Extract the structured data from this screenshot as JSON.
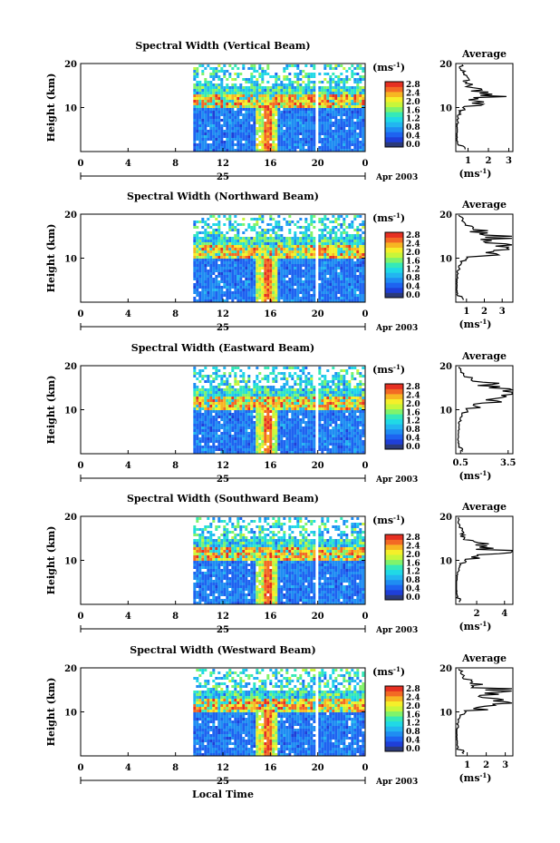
{
  "colors": {
    "scale": [
      "#2b3a7a",
      "#1f3fd8",
      "#1e63f0",
      "#1f8df2",
      "#22b6f0",
      "#20d9e6",
      "#35e9b8",
      "#7ff36b",
      "#c8f63a",
      "#f5ef2a",
      "#f7b622",
      "#f36a24",
      "#e63022"
    ]
  },
  "chart_data": [
    {
      "type": "heatmap",
      "title": "Spectral Width (Vertical Beam)",
      "ylabel": "Height (km)",
      "x_ticks": [
        "0",
        "4",
        "8",
        "12",
        "16",
        "20",
        "0"
      ],
      "y_ticks": [
        "20",
        "10"
      ],
      "date_label": "25",
      "month_year": "Apr 2003",
      "unit_label": "(ms",
      "unit_exp": "-1",
      "unit_close": ")",
      "colorbar_ticks": [
        "2.8",
        "2.4",
        "2.0",
        "1.6",
        "1.2",
        "0.8",
        "0.4",
        "0.0"
      ],
      "data_start_hour": 9.5,
      "data_gap_hours": [
        19.7,
        20.0
      ],
      "tropopause_km": 11,
      "profile": {
        "title": "Average",
        "xlabel": "(ms",
        "xlabel_exp": "-1",
        "xlabel_close": ")",
        "x_ticks": [
          "1",
          "2",
          "3"
        ],
        "y_ticks": [
          "20",
          "10"
        ],
        "x_range": [
          0.4,
          3.2
        ],
        "heights_km": [
          1,
          2,
          3,
          4,
          5,
          6,
          7,
          8,
          9,
          10,
          11,
          12,
          13,
          14,
          15,
          16,
          17,
          18,
          19,
          20
        ],
        "values": [
          0.8,
          0.5,
          0.45,
          0.45,
          0.45,
          0.45,
          0.5,
          0.5,
          0.6,
          0.8,
          1.8,
          1.2,
          2.3,
          1.5,
          1.3,
          0.8,
          1.0,
          0.8,
          0.6,
          0.7
        ]
      }
    },
    {
      "type": "heatmap",
      "title": "Spectral Width (Northward Beam)",
      "ylabel": "Height (km)",
      "x_ticks": [
        "0",
        "4",
        "8",
        "12",
        "16",
        "20",
        "0"
      ],
      "y_ticks": [
        "20",
        "10"
      ],
      "date_label": "25",
      "month_year": "Apr 2003",
      "unit_label": "(ms",
      "unit_exp": "-1",
      "unit_close": ")",
      "colorbar_ticks": [
        "2.8",
        "2.4",
        "2.0",
        "1.6",
        "1.2",
        "0.8",
        "0.4",
        "0.0"
      ],
      "data_start_hour": 9.5,
      "data_gap_hours": [
        19.7,
        20.0
      ],
      "tropopause_km": 10.5,
      "profile": {
        "title": "Average",
        "xlabel": "(ms",
        "xlabel_exp": "-1",
        "xlabel_close": ")",
        "x_ticks": [
          "1",
          "2",
          "3"
        ],
        "y_ticks": [
          "20",
          "10"
        ],
        "x_range": [
          0.4,
          3.6
        ],
        "heights_km": [
          1,
          2,
          3,
          4,
          5,
          6,
          7,
          8,
          9,
          10,
          11,
          12,
          13,
          14,
          15,
          16,
          17,
          18,
          19,
          20
        ],
        "values": [
          0.8,
          0.5,
          0.45,
          0.45,
          0.45,
          0.5,
          0.5,
          0.6,
          0.7,
          1.0,
          2.2,
          2.9,
          3.1,
          2.6,
          3.0,
          1.8,
          1.4,
          0.9,
          0.8,
          0.6
        ]
      }
    },
    {
      "type": "heatmap",
      "title": "Spectral Width (Eastward Beam)",
      "ylabel": "Height (km)",
      "x_ticks": [
        "0",
        "4",
        "8",
        "12",
        "16",
        "20",
        "0"
      ],
      "y_ticks": [
        "20",
        "10"
      ],
      "date_label": "25",
      "month_year": "Apr 2003",
      "unit_label": "(ms",
      "unit_exp": "-1",
      "unit_close": ")",
      "colorbar_ticks": [
        "2.8",
        "2.4",
        "2.0",
        "1.6",
        "1.2",
        "0.8",
        "0.4",
        "0.0"
      ],
      "data_start_hour": 9.5,
      "data_gap_hours": [
        19.7,
        20.0
      ],
      "tropopause_km": 11,
      "profile": {
        "title": "Average",
        "xlabel": "(ms",
        "xlabel_exp": "-1",
        "xlabel_close": ")",
        "x_ticks": [
          "0.5",
          "3.5"
        ],
        "y_ticks": [
          "20",
          "10"
        ],
        "x_range": [
          0.2,
          3.8
        ],
        "heights_km": [
          1,
          2,
          3,
          4,
          5,
          6,
          7,
          8,
          9,
          10,
          11,
          12,
          13,
          14,
          15,
          16,
          17,
          18,
          19,
          20
        ],
        "values": [
          0.6,
          0.4,
          0.35,
          0.35,
          0.35,
          0.4,
          0.4,
          0.5,
          0.6,
          0.9,
          1.4,
          2.5,
          3.2,
          3.3,
          3.0,
          2.4,
          1.2,
          0.7,
          0.5,
          0.4
        ]
      }
    },
    {
      "type": "heatmap",
      "title": "Spectral Width (Southward Beam)",
      "ylabel": "Height (km)",
      "x_ticks": [
        "0",
        "4",
        "8",
        "12",
        "16",
        "20",
        "0"
      ],
      "y_ticks": [
        "20",
        "10"
      ],
      "date_label": "25",
      "month_year": "Apr 2003",
      "unit_label": "(ms",
      "unit_exp": "-1",
      "unit_close": ")",
      "colorbar_ticks": [
        "2.8",
        "2.4",
        "2.0",
        "1.6",
        "1.2",
        "0.8",
        "0.4",
        "0.0"
      ],
      "data_start_hour": 9.5,
      "data_gap_hours": [
        19.7,
        20.0
      ],
      "tropopause_km": 11,
      "profile": {
        "title": "Average",
        "xlabel": "(ms",
        "xlabel_exp": "-1",
        "xlabel_close": ")",
        "x_ticks": [
          "2",
          "4"
        ],
        "y_ticks": [
          "20",
          "10"
        ],
        "x_range": [
          0.5,
          4.6
        ],
        "heights_km": [
          1,
          2,
          3,
          4,
          5,
          6,
          7,
          8,
          9,
          10,
          11,
          12,
          13,
          14,
          15,
          16,
          17,
          18,
          19,
          20
        ],
        "values": [
          0.8,
          0.6,
          0.55,
          0.55,
          0.55,
          0.6,
          0.6,
          0.7,
          0.8,
          1.2,
          2.4,
          4.2,
          3.0,
          2.2,
          1.6,
          1.2,
          1.0,
          0.8,
          0.7,
          0.7
        ]
      }
    },
    {
      "type": "heatmap",
      "title": "Spectral Width (Westward Beam)",
      "ylabel": "Height (km)",
      "x_ticks": [
        "0",
        "4",
        "8",
        "12",
        "16",
        "20",
        "0"
      ],
      "y_ticks": [
        "20",
        "10"
      ],
      "date_label": "25",
      "month_year": "Apr 2003",
      "unit_label": "(ms",
      "unit_exp": "-1",
      "unit_close": ")",
      "colorbar_ticks": [
        "2.8",
        "2.4",
        "2.0",
        "1.6",
        "1.2",
        "0.8",
        "0.4",
        "0.0"
      ],
      "data_start_hour": 9.5,
      "data_gap_hours": [
        19.7,
        20.0
      ],
      "tropopause_km": 11,
      "profile": {
        "title": "Average",
        "xlabel": "(ms",
        "xlabel_exp": "-1",
        "xlabel_close": ")",
        "x_ticks": [
          "1",
          "2",
          "3"
        ],
        "y_ticks": [
          "20",
          "10"
        ],
        "x_range": [
          0.4,
          3.4
        ],
        "heights_km": [
          1,
          2,
          3,
          4,
          5,
          6,
          7,
          8,
          9,
          10,
          11,
          12,
          13,
          14,
          15,
          16,
          17,
          18,
          19,
          20
        ],
        "values": [
          0.8,
          0.5,
          0.45,
          0.45,
          0.45,
          0.45,
          0.5,
          0.55,
          0.6,
          0.9,
          1.8,
          3.0,
          2.4,
          2.0,
          2.6,
          1.4,
          1.2,
          0.8,
          0.7,
          0.6
        ]
      }
    }
  ],
  "footer": {
    "xlabel": "Local Time"
  }
}
